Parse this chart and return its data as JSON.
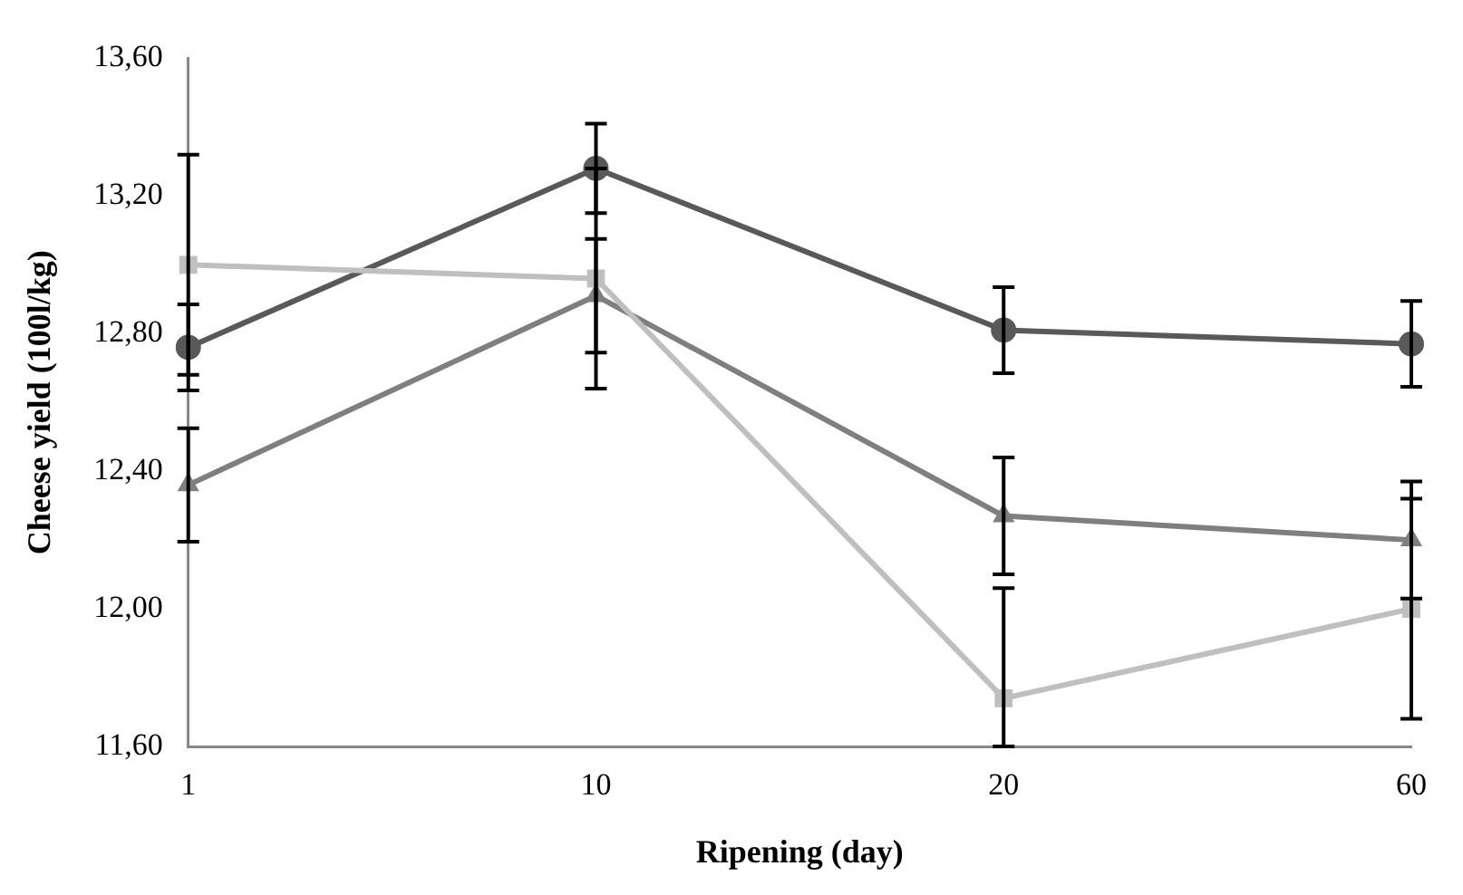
{
  "chart_data": {
    "type": "line",
    "xlabel": "Ripening (day)",
    "ylabel": "Cheese yield (100l/kg)",
    "categories": [
      "1",
      "10",
      "20",
      "60"
    ],
    "ylim": [
      11.6,
      13.6
    ],
    "yticks": [
      {
        "value": 11.6,
        "label": "11,60"
      },
      {
        "value": 12,
        "label": "12,00"
      },
      {
        "value": 12.4,
        "label": "12,40"
      },
      {
        "value": 12.8,
        "label": "12,80"
      },
      {
        "value": 13.2,
        "label": "13,20"
      },
      {
        "value": 13.6,
        "label": "13,60"
      }
    ],
    "grid": false,
    "legend": false,
    "series": [
      {
        "color": "#bfbfbf",
        "marker": "square",
        "values": [
          13.0,
          12.96,
          11.74,
          12.0
        ],
        "errors": [
          0.32,
          0.32,
          [
            11.6,
            12.06
          ],
          0.32
        ]
      },
      {
        "color": "#7f7f7f",
        "marker": "triangle",
        "values": [
          12.36,
          12.91,
          12.27,
          12.2
        ],
        "errors": [
          0.165,
          0.165,
          0.17,
          0.17
        ]
      },
      {
        "color": "#595959",
        "marker": "circle",
        "values": [
          12.76,
          13.28,
          12.81,
          12.77
        ],
        "errors": [
          0.125,
          0.13,
          0.125,
          0.125
        ]
      }
    ]
  }
}
